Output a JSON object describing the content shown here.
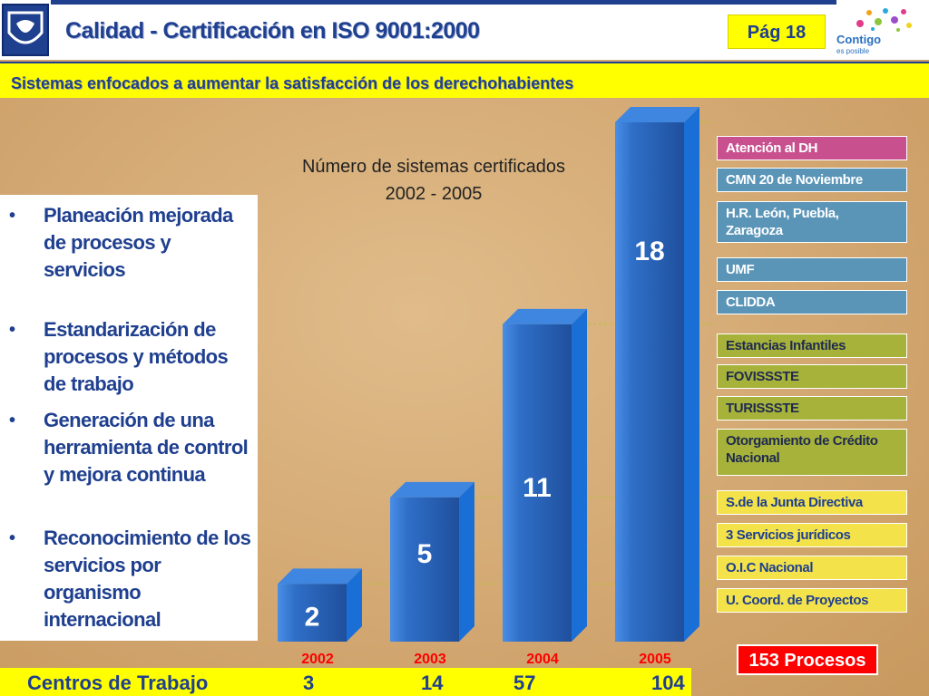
{
  "header": {
    "title": "Calidad - Certificación en ISO 9001:2000",
    "page": "Pág 18",
    "logo_text": "Contigo",
    "logo_sub": "es posible"
  },
  "subtitle": "Sistemas enfocados a aumentar la satisfacción de los derechohabientes",
  "bullets": [
    "Planeación mejorada de procesos y servicios",
    "Estandarización de procesos y métodos de trabajo",
    "Generación de una herramienta de control y mejora continua",
    "Reconocimiento de los servicios por organismo internacional"
  ],
  "chart_data": {
    "type": "bar",
    "title": "Número de sistemas certificados",
    "subtitle": "2002 - 2005",
    "categories": [
      "2002",
      "2003",
      "2004",
      "2005"
    ],
    "values": [
      2,
      5,
      11,
      18
    ],
    "ylim": [
      0,
      18
    ],
    "bar_color": "#2b63b5",
    "label_color": "#ff0000",
    "xlabel": "",
    "ylabel": ""
  },
  "legend_groups": [
    {
      "style": "pink",
      "items": [
        "Atención al DH"
      ]
    },
    {
      "style": "teal",
      "items": [
        "CMN 20 de Noviembre",
        "H.R. León, Puebla, Zaragoza",
        "UMF",
        "CLIDDA"
      ]
    },
    {
      "style": "olive",
      "items": [
        "Estancias Infantiles",
        "FOVISSSTE",
        "TURISSSTE",
        "Otorgamiento de Crédito Nacional"
      ]
    },
    {
      "style": "yellow",
      "items": [
        "S.de la Junta Directiva",
        "3 Servicios jurídicos",
        "O.I.C Nacional",
        "U. Coord. de Proyectos"
      ]
    }
  ],
  "total": "153 Procesos",
  "workplaces": {
    "label": "Centros de Trabajo",
    "values": [
      "3",
      "14",
      "57",
      "104"
    ]
  }
}
